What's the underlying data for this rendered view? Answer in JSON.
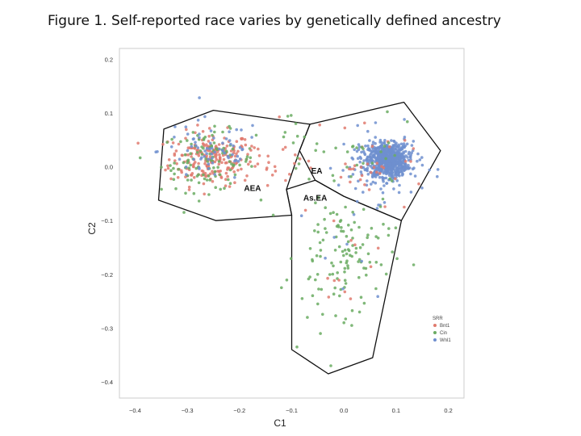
{
  "page": {
    "title": "Figure 1. Self-reported race varies by genetically defined ancestry"
  },
  "chart_data": {
    "type": "scatter",
    "title": "",
    "xlabel": "C1",
    "ylabel": "C2",
    "xlim": [
      -0.43,
      0.23
    ],
    "ylim": [
      -0.43,
      0.22
    ],
    "x_ticks": [
      -0.4,
      -0.3,
      -0.2,
      -0.1,
      0.0,
      0.1,
      0.2
    ],
    "y_ticks": [
      0.2,
      0.1,
      0.0,
      -0.1,
      -0.2,
      -0.3,
      -0.4
    ],
    "x_tick_labels": [
      "−0.4",
      "−0.3",
      "−0.2",
      "−0.1",
      "0.0",
      "0.1",
      "0.2"
    ],
    "y_tick_labels": [
      "0.2",
      "0.1",
      "0.0",
      "−0.1",
      "−0.2",
      "−0.3",
      "−0.4"
    ],
    "grid": false,
    "legend": {
      "title": "SRR",
      "placement": "bottom-right",
      "entries": [
        {
          "label": "Bnt1",
          "color": "#e07a6e"
        },
        {
          "label": "Cin",
          "color": "#6aab62"
        },
        {
          "label": "Wnl1",
          "color": "#6f8fcf"
        }
      ]
    },
    "regions": [
      {
        "label": "AEA",
        "label_pos": [
          -0.175,
          -0.045
        ],
        "polygon": [
          [
            -0.345,
            0.07
          ],
          [
            -0.25,
            0.105
          ],
          [
            -0.065,
            0.079
          ],
          [
            -0.085,
            0.03
          ],
          [
            -0.11,
            -0.042
          ],
          [
            -0.1,
            -0.09
          ],
          [
            -0.245,
            -0.1
          ],
          [
            -0.355,
            -0.062
          ]
        ]
      },
      {
        "label": "EA",
        "label_pos": [
          -0.052,
          -0.013
        ],
        "polygon": [
          [
            -0.065,
            0.079
          ],
          [
            0.115,
            0.12
          ],
          [
            0.185,
            0.03
          ],
          [
            0.11,
            -0.1
          ],
          [
            0.0,
            -0.055
          ],
          [
            -0.055,
            -0.025
          ],
          [
            -0.085,
            0.03
          ]
        ]
      },
      {
        "label": "As.EA",
        "label_pos": [
          -0.055,
          -0.063
        ],
        "polygon": [
          [
            -0.11,
            -0.042
          ],
          [
            -0.055,
            -0.025
          ],
          [
            0.0,
            -0.055
          ],
          [
            0.11,
            -0.1
          ],
          [
            0.055,
            -0.355
          ],
          [
            -0.03,
            -0.385
          ],
          [
            -0.1,
            -0.34
          ],
          [
            -0.1,
            -0.09
          ]
        ]
      }
    ],
    "clusters": [
      {
        "series": "Bnt1",
        "color": "#e07a6e",
        "n": 230,
        "center": [
          -0.255,
          0.015
        ],
        "spread": [
          0.04,
          0.025
        ]
      },
      {
        "series": "Cin",
        "color": "#6aab62",
        "n": 110,
        "center": [
          -0.26,
          0.01
        ],
        "spread": [
          0.045,
          0.028
        ]
      },
      {
        "series": "Wnl1",
        "color": "#6f8fcf",
        "n": 70,
        "center": [
          -0.255,
          0.03
        ],
        "spread": [
          0.05,
          0.03
        ]
      },
      {
        "series": "Wnl1",
        "color": "#6f8fcf",
        "n": 700,
        "center": [
          0.085,
          0.012
        ],
        "spread": [
          0.018,
          0.015
        ]
      },
      {
        "series": "Wnl1",
        "color": "#6f8fcf",
        "n": 130,
        "center": [
          0.07,
          0.005
        ],
        "spread": [
          0.04,
          0.032
        ]
      },
      {
        "series": "Bnt1",
        "color": "#e07a6e",
        "n": 35,
        "center": [
          0.06,
          0.0
        ],
        "spread": [
          0.05,
          0.03
        ]
      },
      {
        "series": "Cin",
        "color": "#6aab62",
        "n": 25,
        "center": [
          0.04,
          0.015
        ],
        "spread": [
          0.05,
          0.03
        ]
      },
      {
        "series": "Cin",
        "color": "#6aab62",
        "n": 120,
        "center": [
          0.0,
          -0.16
        ],
        "spread": [
          0.045,
          0.055
        ]
      },
      {
        "series": "Bnt1",
        "color": "#e07a6e",
        "n": 12,
        "center": [
          -0.01,
          -0.17
        ],
        "spread": [
          0.04,
          0.05
        ]
      },
      {
        "series": "Wnl1",
        "color": "#6f8fcf",
        "n": 8,
        "center": [
          -0.01,
          -0.15
        ],
        "spread": [
          0.04,
          0.05
        ]
      },
      {
        "series": "Bnt1",
        "color": "#e07a6e",
        "n": 20,
        "center": [
          -0.12,
          0.03
        ],
        "spread": [
          0.035,
          0.04
        ]
      },
      {
        "series": "Cin",
        "color": "#6aab62",
        "n": 10,
        "center": [
          -0.09,
          0.05
        ],
        "spread": [
          0.03,
          0.03
        ]
      }
    ],
    "outliers": [
      {
        "series": "Cin",
        "color": "#6aab62",
        "points": [
          [
            -0.09,
            -0.335
          ],
          [
            -0.05,
            -0.255
          ],
          [
            -0.07,
            -0.28
          ],
          [
            -0.025,
            -0.37
          ],
          [
            0.015,
            -0.295
          ],
          [
            -0.045,
            -0.31
          ],
          [
            0.0,
            -0.29
          ],
          [
            -0.08,
            -0.245
          ],
          [
            0.03,
            -0.27
          ],
          [
            -0.065,
            -0.205
          ]
        ]
      }
    ]
  }
}
